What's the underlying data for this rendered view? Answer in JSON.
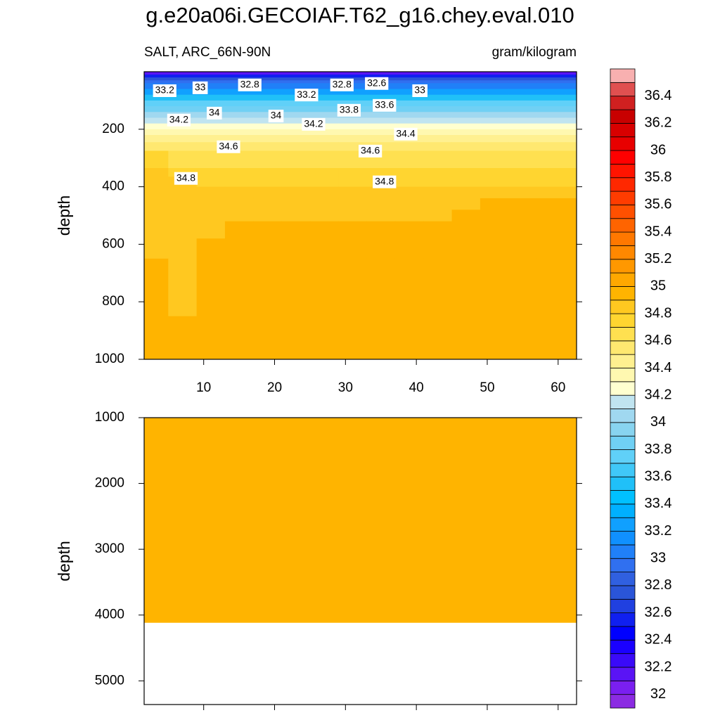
{
  "chart_data": [
    {
      "type": "contour",
      "title": "g.e20a06i.GECOIAF.T62_g16.chey.eval.010",
      "subtitle_left": "SALT, ARC_66N-90N",
      "subtitle_right": "gram/kilogram",
      "ylabel": "depth",
      "xlim": [
        1.6,
        62.6
      ],
      "xticks": [
        10,
        20,
        30,
        40,
        50,
        60
      ],
      "ylim": [
        0,
        1000
      ],
      "yticks": [
        200,
        400,
        600,
        800,
        1000
      ],
      "y_reversed": true,
      "x_edges": [
        1.6,
        5,
        9,
        13,
        17,
        21,
        25,
        29,
        33,
        37,
        41,
        45,
        49,
        53,
        57,
        61,
        62.6
      ],
      "depth_edges": [
        0,
        10,
        20,
        30,
        40,
        60,
        80,
        100,
        120,
        140,
        160,
        180,
        200,
        220,
        245,
        275,
        305,
        335,
        365,
        400,
        440,
        480,
        520,
        580,
        650,
        750,
        850,
        1000
      ],
      "values": [
        [
          32.1,
          32.1,
          32.1,
          32.1,
          32.1,
          32.1,
          32.1,
          32.1,
          32.1,
          32.1,
          32.1,
          32.1,
          32.1,
          32.1,
          32.1,
          32.1
        ],
        [
          32.5,
          32.5,
          32.5,
          32.5,
          32.5,
          32.5,
          32.5,
          32.5,
          32.5,
          32.5,
          32.5,
          32.5,
          32.5,
          32.5,
          32.5,
          32.5
        ],
        [
          32.7,
          32.7,
          32.7,
          32.7,
          32.7,
          32.7,
          32.7,
          32.7,
          32.7,
          32.7,
          32.7,
          32.7,
          32.7,
          32.7,
          32.7,
          32.7
        ],
        [
          32.9,
          32.9,
          32.9,
          32.9,
          32.9,
          32.9,
          32.9,
          32.9,
          32.9,
          32.9,
          32.9,
          32.9,
          32.9,
          32.9,
          32.9,
          32.9
        ],
        [
          33.05,
          33.05,
          33.05,
          33.05,
          33.05,
          33.05,
          33.05,
          33.05,
          33.05,
          33.05,
          33.05,
          33.05,
          33.05,
          33.05,
          33.05,
          33.05
        ],
        [
          33.25,
          33.25,
          33.25,
          33.25,
          33.25,
          33.25,
          33.25,
          33.25,
          33.25,
          33.25,
          33.25,
          33.25,
          33.25,
          33.25,
          33.25,
          33.25
        ],
        [
          33.5,
          33.5,
          33.5,
          33.5,
          33.5,
          33.5,
          33.5,
          33.5,
          33.5,
          33.5,
          33.5,
          33.5,
          33.5,
          33.5,
          33.5,
          33.5
        ],
        [
          33.7,
          33.7,
          33.7,
          33.7,
          33.7,
          33.7,
          33.7,
          33.7,
          33.7,
          33.7,
          33.7,
          33.7,
          33.7,
          33.7,
          33.7,
          33.7
        ],
        [
          33.85,
          33.85,
          33.85,
          33.85,
          33.85,
          33.85,
          33.85,
          33.85,
          33.85,
          33.85,
          33.85,
          33.85,
          33.85,
          33.85,
          33.85,
          33.85
        ],
        [
          34.0,
          34.0,
          34.0,
          34.0,
          34.0,
          34.0,
          34.0,
          34.0,
          34.0,
          34.0,
          34.0,
          34.0,
          34.0,
          34.0,
          34.0,
          34.0
        ],
        [
          34.15,
          34.15,
          34.15,
          34.15,
          34.15,
          34.15,
          34.15,
          34.15,
          34.15,
          34.15,
          34.15,
          34.15,
          34.15,
          34.15,
          34.15,
          34.15
        ],
        [
          34.25,
          34.25,
          34.25,
          34.25,
          34.25,
          34.25,
          34.25,
          34.25,
          34.25,
          34.25,
          34.25,
          34.25,
          34.25,
          34.25,
          34.25,
          34.25
        ],
        [
          34.35,
          34.35,
          34.35,
          34.35,
          34.35,
          34.35,
          34.35,
          34.35,
          34.35,
          34.35,
          34.35,
          34.35,
          34.35,
          34.35,
          34.35,
          34.35
        ],
        [
          34.45,
          34.45,
          34.45,
          34.45,
          34.45,
          34.45,
          34.45,
          34.45,
          34.45,
          34.45,
          34.45,
          34.45,
          34.45,
          34.45,
          34.45,
          34.45
        ],
        [
          34.55,
          34.55,
          34.55,
          34.55,
          34.55,
          34.55,
          34.55,
          34.55,
          34.55,
          34.55,
          34.55,
          34.55,
          34.55,
          34.55,
          34.55,
          34.55
        ],
        [
          34.72,
          34.62,
          34.62,
          34.62,
          34.62,
          34.62,
          34.62,
          34.62,
          34.62,
          34.62,
          34.62,
          34.62,
          34.62,
          34.62,
          34.62,
          34.62
        ],
        [
          34.78,
          34.67,
          34.67,
          34.67,
          34.67,
          34.67,
          34.67,
          34.67,
          34.67,
          34.67,
          34.67,
          34.67,
          34.67,
          34.67,
          34.67,
          34.67
        ],
        [
          34.82,
          34.75,
          34.72,
          34.72,
          34.72,
          34.72,
          34.72,
          34.72,
          34.72,
          34.72,
          34.72,
          34.72,
          34.72,
          34.72,
          34.72,
          34.72
        ],
        [
          34.84,
          34.8,
          34.78,
          34.78,
          34.78,
          34.78,
          34.78,
          34.78,
          34.78,
          34.78,
          34.78,
          34.78,
          34.78,
          34.78,
          34.78,
          34.78
        ],
        [
          34.86,
          34.83,
          34.82,
          34.82,
          34.82,
          34.82,
          34.82,
          34.82,
          34.82,
          34.82,
          34.82,
          34.82,
          34.82,
          34.82,
          34.82,
          34.82
        ],
        [
          34.87,
          34.86,
          34.86,
          34.86,
          34.86,
          34.86,
          34.86,
          34.86,
          34.86,
          34.86,
          34.86,
          34.86,
          34.9,
          34.9,
          34.9,
          34.9
        ],
        [
          34.88,
          34.88,
          34.88,
          34.88,
          34.88,
          34.88,
          34.88,
          34.88,
          34.88,
          34.88,
          34.88,
          34.91,
          34.91,
          34.91,
          34.91,
          34.91
        ],
        [
          34.88,
          34.88,
          34.89,
          34.91,
          34.91,
          34.91,
          34.91,
          34.91,
          34.91,
          34.91,
          34.91,
          34.91,
          34.92,
          34.92,
          34.92,
          34.92
        ],
        [
          34.88,
          34.88,
          34.91,
          34.92,
          34.92,
          34.92,
          34.92,
          34.92,
          34.92,
          34.92,
          34.92,
          34.92,
          34.93,
          34.93,
          34.93,
          34.93
        ],
        [
          34.91,
          34.88,
          34.92,
          34.93,
          34.93,
          34.93,
          34.93,
          34.93,
          34.93,
          34.93,
          34.93,
          34.93,
          34.93,
          34.93,
          34.93,
          34.93
        ],
        [
          34.93,
          34.89,
          34.93,
          34.94,
          34.94,
          34.94,
          34.94,
          34.94,
          34.94,
          34.94,
          34.94,
          34.94,
          34.94,
          34.94,
          34.94,
          34.94
        ],
        [
          34.95,
          34.95,
          34.95,
          34.95,
          34.95,
          34.95,
          34.95,
          34.95,
          34.95,
          34.95,
          34.95,
          34.95,
          34.95,
          34.95,
          34.95,
          34.95
        ]
      ],
      "contour_labels": [
        {
          "value": 33.2,
          "x": 4.5,
          "depth": 66
        },
        {
          "value": 33,
          "x": 9.5,
          "depth": 56
        },
        {
          "value": 32.8,
          "x": 16.5,
          "depth": 46
        },
        {
          "value": 33.2,
          "x": 24.5,
          "depth": 81
        },
        {
          "value": 32.8,
          "x": 29.5,
          "depth": 46
        },
        {
          "value": 32.6,
          "x": 34.4,
          "depth": 41
        },
        {
          "value": 33,
          "x": 40.5,
          "depth": 66
        },
        {
          "value": 34,
          "x": 11.5,
          "depth": 144
        },
        {
          "value": 34.2,
          "x": 6.5,
          "depth": 168
        },
        {
          "value": 34,
          "x": 20.2,
          "depth": 154
        },
        {
          "value": 33.8,
          "x": 30.5,
          "depth": 134
        },
        {
          "value": 33.6,
          "x": 35.5,
          "depth": 117
        },
        {
          "value": 34.2,
          "x": 25.5,
          "depth": 183
        },
        {
          "value": 34.4,
          "x": 38.5,
          "depth": 217
        },
        {
          "value": 34.6,
          "x": 13.5,
          "depth": 261
        },
        {
          "value": 34.6,
          "x": 33.5,
          "depth": 276
        },
        {
          "value": 34.8,
          "x": 7.5,
          "depth": 371
        },
        {
          "value": 34.8,
          "x": 35.5,
          "depth": 383
        }
      ],
      "colorbar": {
        "levels": [
          32.0,
          32.1,
          32.2,
          32.3,
          32.4,
          32.5,
          32.6,
          32.7,
          32.8,
          32.9,
          33.0,
          33.1,
          33.2,
          33.3,
          33.4,
          33.5,
          33.6,
          33.7,
          33.8,
          33.9,
          34.0,
          34.1,
          34.2,
          34.3,
          34.4,
          34.5,
          34.6,
          34.7,
          34.8,
          34.9,
          35.0,
          35.1,
          35.2,
          35.3,
          35.4,
          35.5,
          35.6,
          35.7,
          35.8,
          35.9,
          36.0,
          36.1,
          36.2,
          36.3,
          36.4,
          36.5
        ],
        "ticks": [
          32,
          32.2,
          32.4,
          32.6,
          32.8,
          33,
          33.2,
          33.4,
          33.6,
          33.8,
          34,
          34.2,
          34.4,
          34.6,
          34.8,
          35,
          35.2,
          35.4,
          35.6,
          35.8,
          36,
          36.2,
          36.4
        ],
        "colors": [
          "#8b2be2",
          "#7a1ff0",
          "#5a14f5",
          "#3a0af8",
          "#1a00ff",
          "#0000ff",
          "#1020f0",
          "#2040e0",
          "#2a55d8",
          "#3060e0",
          "#3070f0",
          "#2080f8",
          "#1090ff",
          "#10a0ff",
          "#00b0ff",
          "#00c0ff",
          "#20c0f8",
          "#40c8f8",
          "#60d0f8",
          "#70d0f4",
          "#88d4f0",
          "#a0d8f0",
          "#c0e4f0",
          "#ffffd0",
          "#fff8b0",
          "#fff090",
          "#ffe870",
          "#ffe050",
          "#ffd530",
          "#ffc820",
          "#ffb400",
          "#ffa800",
          "#ff9800",
          "#ff8800",
          "#ff7800",
          "#ff6400",
          "#ff5000",
          "#ff3c00",
          "#ff2800",
          "#ff1400",
          "#ff0000",
          "#e80000",
          "#d80000",
          "#c80000",
          "#d02020",
          "#e05050",
          "#f8b0b0"
        ]
      }
    },
    {
      "type": "contour",
      "ylabel": "depth",
      "xlim": [
        1.6,
        62.6
      ],
      "xticks": [
        10,
        20,
        30,
        40,
        50,
        60
      ],
      "ylim": [
        1000,
        5360
      ],
      "yticks": [
        1000,
        2000,
        3000,
        4000,
        5000
      ],
      "y_reversed": true,
      "x_edges": [
        1.6,
        62.6
      ],
      "depth_edges": [
        1000,
        4112
      ],
      "values": [
        [
          34.95
        ]
      ]
    }
  ]
}
